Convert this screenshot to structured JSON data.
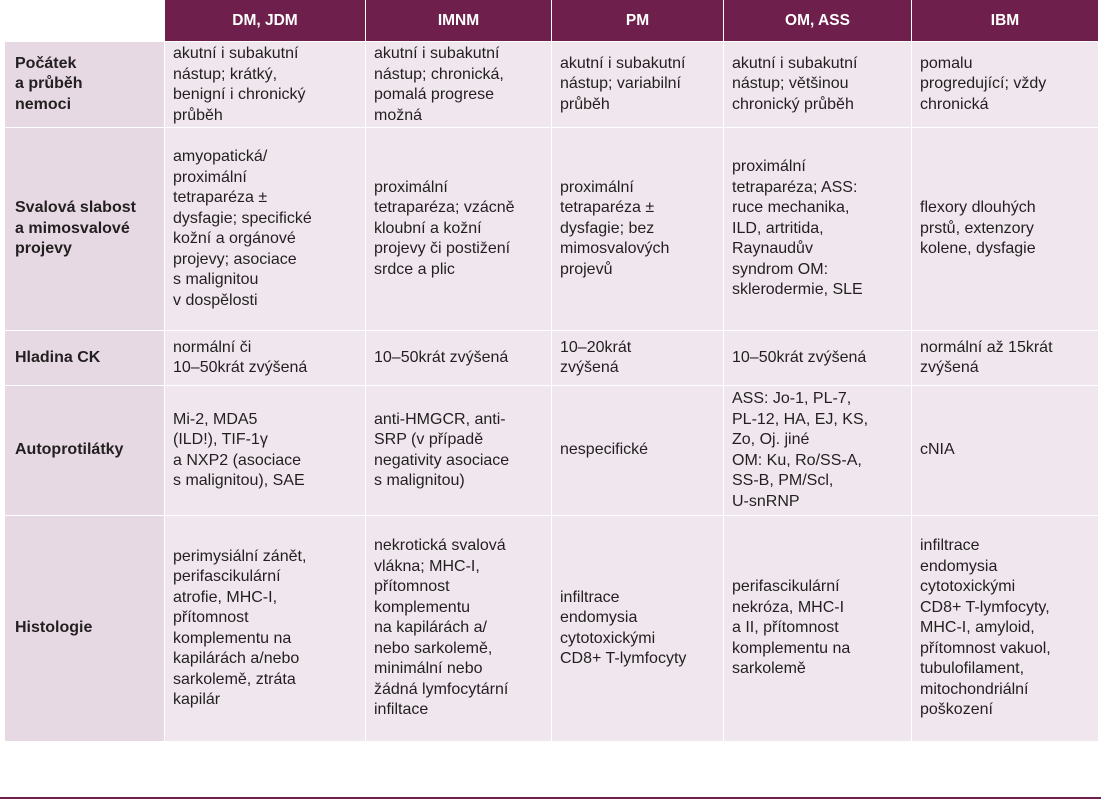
{
  "table": {
    "columns": [
      "DM, JDM",
      "IMNM",
      "PM",
      "OM, ASS",
      "IBM"
    ],
    "rows": [
      {
        "label": "Počátek\na průběh\nnemoci",
        "cells": [
          "akutní i subakutní\nnástup; krátký,\nbenigní i chronický\nprůběh",
          "akutní i subakutní\nnástup; chronická,\npomalá progrese\nmožná",
          "akutní i subakutní\nnástup; variabilní\nprůběh",
          "akutní i subakutní\nnástup; většinou\nchronický průběh",
          "pomalu\nprogredující; vždy\nchronická"
        ]
      },
      {
        "label": "Svalová slabost\na mimosvalové\nprojevy",
        "cells": [
          "amyopatická/\nproximální\ntetraparéza ±\ndysfagie; specifické\nkožní a orgánové\nprojevy; asociace\ns malignitou\nv dospělosti",
          "proximální\ntetraparéza; vzácně\nkloubní a kožní\nprojevy či postižení\nsrdce a plic",
          "proximální\ntetraparéza ±\ndysfagie; bez\nmimosvalových\nprojevů",
          "proximální\ntetraparéza; ASS:\nruce mechanika,\nILD, artritida,\nRaynaudův\nsyndrom OM:\nsklerodermie, SLE",
          "flexory dlouhých\nprstů, extenzory\nkolene, dysfagie"
        ]
      },
      {
        "label": "Hladina CK",
        "cells": [
          "normální či\n10–50krát zvýšená",
          "10–50krát zvýšená",
          "10–20krát\nzvýšená",
          "10–50krát zvýšená",
          "normální až 15krát\nzvýšená"
        ]
      },
      {
        "label": "Autoprotilátky",
        "cells": [
          "Mi-2, MDA5\n(ILD!), TIF-1γ\na NXP2 (asociace\ns malignitou), SAE",
          "anti-HMGCR, anti-\nSRP (v případě\nnegativity asociace\ns malignitou)",
          "nespecifické",
          "ASS: Jo-1, PL-7,\nPL-12, HA, EJ, KS,\nZo, Oj. jiné\nOM: Ku, Ro/SS-A,\nSS-B, PM/Scl,\nU-snRNP",
          "cNIA"
        ]
      },
      {
        "label": "Histologie",
        "cells": [
          "perimysiální zánět,\nperifascikulární\natrofie, MHC-I,\npřítomnost\nkomplementu na\nkapilárách a/nebo\nsarkolemě, ztráta\nkapilár",
          "nekrotická svalová\nvlákna; MHC-I,\npřítomnost\nkomplementu\nna kapilárách a/\nnebo sarkolemě,\nminimální nebo\nžádná lymfocytární\ninfiltace",
          "infiltrace\nendomysia\ncytotoxickými\nCD8+ T-lymfocyty",
          "perifascikulární\nnekróza, MHC-I\na II, přítomnost\nkomplementu na\nsarkolemě",
          "infiltrace\nendomysia\ncytotoxickými\nCD8+ T-lymfocyty,\nMHC-I, amyloid,\npřítomnost vakuol,\ntubulofilament,\nmitochondriální\npoškození"
        ]
      }
    ]
  }
}
